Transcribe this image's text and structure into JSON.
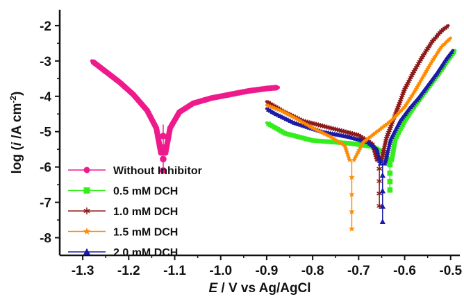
{
  "chart_data": {
    "type": "line",
    "xlabel": "E / V vs Ag/AgCl",
    "xlabel_italic": "E",
    "xlabel_rest": " / V vs Ag/AgCl",
    "ylabel": "log (i /A cm-2)",
    "ylabel_parts": {
      "pre": "log (",
      "italic": "i",
      "mid": " /A cm",
      "sup": "-2",
      "post": ")"
    },
    "xlim": [
      -1.35,
      -0.48
    ],
    "ylim": [
      -8.5,
      -1.55
    ],
    "xticks": [
      -1.3,
      -1.2,
      -1.1,
      -1.0,
      -0.9,
      -0.8,
      -0.7,
      -0.6,
      -0.5
    ],
    "xtick_labels": [
      "-1.3",
      "-1.2",
      "-1.1",
      "-1.0",
      "-0.9",
      "-0.8",
      "-0.7",
      "-0.6",
      "-0.5"
    ],
    "yticks": [
      -2,
      -3,
      -4,
      -5,
      -6,
      -7,
      -8
    ],
    "ytick_labels": [
      "-2",
      "-3",
      "-4",
      "-5",
      "-6",
      "-7",
      "-8"
    ],
    "legend_position": "bottom-left",
    "series": [
      {
        "name": "Without Inhibitor",
        "color": "#ee1a8c",
        "marker": "circle",
        "ecorr": -1.125,
        "anodic": [
          [
            -1.12,
            -5.6
          ],
          [
            -1.11,
            -4.9
          ],
          [
            -1.09,
            -4.45
          ],
          [
            -1.06,
            -4.2
          ],
          [
            -1.02,
            -4.05
          ],
          [
            -0.98,
            -3.95
          ],
          [
            -0.94,
            -3.85
          ],
          [
            -0.9,
            -3.78
          ],
          [
            -0.875,
            -3.75
          ]
        ],
        "cathodic": [
          [
            -1.13,
            -5.6
          ],
          [
            -1.14,
            -4.9
          ],
          [
            -1.16,
            -4.4
          ],
          [
            -1.19,
            -3.95
          ],
          [
            -1.22,
            -3.6
          ],
          [
            -1.25,
            -3.3
          ],
          [
            -1.28,
            -3.0
          ]
        ],
        "spike": [
          [
            -1.125,
            -4.8
          ],
          [
            -1.125,
            -6.1
          ]
        ]
      },
      {
        "name": "0.5 mM DCH",
        "color": "#33ee1c",
        "marker": "square",
        "ecorr": -0.632,
        "anodic": [
          [
            -0.628,
            -5.8
          ],
          [
            -0.62,
            -5.2
          ],
          [
            -0.6,
            -4.7
          ],
          [
            -0.58,
            -4.3
          ],
          [
            -0.56,
            -3.95
          ],
          [
            -0.54,
            -3.6
          ],
          [
            -0.52,
            -3.25
          ],
          [
            -0.505,
            -2.95
          ],
          [
            -0.49,
            -2.7
          ]
        ],
        "cathodic": [
          [
            -0.636,
            -5.8
          ],
          [
            -0.645,
            -5.6
          ],
          [
            -0.67,
            -5.42
          ],
          [
            -0.72,
            -5.33
          ],
          [
            -0.8,
            -5.25
          ],
          [
            -0.86,
            -5.05
          ],
          [
            -0.9,
            -4.75
          ]
        ],
        "spike": [
          [
            -0.632,
            -5.7
          ],
          [
            -0.632,
            -6.65
          ]
        ]
      },
      {
        "name": "1.0 mM DCH",
        "color": "#8b1a1a",
        "marker": "star6",
        "ecorr": -0.655,
        "anodic": [
          [
            -0.65,
            -5.8
          ],
          [
            -0.64,
            -5.2
          ],
          [
            -0.62,
            -4.5
          ],
          [
            -0.6,
            -3.8
          ],
          [
            -0.58,
            -3.3
          ],
          [
            -0.56,
            -2.85
          ],
          [
            -0.54,
            -2.45
          ],
          [
            -0.52,
            -2.15
          ],
          [
            -0.505,
            -2.0
          ]
        ],
        "cathodic": [
          [
            -0.66,
            -5.8
          ],
          [
            -0.67,
            -5.35
          ],
          [
            -0.7,
            -5.1
          ],
          [
            -0.76,
            -4.9
          ],
          [
            -0.82,
            -4.7
          ],
          [
            -0.86,
            -4.45
          ],
          [
            -0.9,
            -4.15
          ]
        ],
        "spike": [
          [
            -0.655,
            -5.7
          ],
          [
            -0.655,
            -7.1
          ]
        ]
      },
      {
        "name": "1.5 mM DCH",
        "color": "#ff8a00",
        "marker": "star5",
        "ecorr": -0.715,
        "anodic": [
          [
            -0.71,
            -5.8
          ],
          [
            -0.69,
            -5.3
          ],
          [
            -0.66,
            -5.0
          ],
          [
            -0.63,
            -4.7
          ],
          [
            -0.6,
            -4.3
          ],
          [
            -0.58,
            -3.9
          ],
          [
            -0.56,
            -3.45
          ],
          [
            -0.54,
            -3.0
          ],
          [
            -0.52,
            -2.6
          ],
          [
            -0.5,
            -2.35
          ]
        ],
        "cathodic": [
          [
            -0.72,
            -5.8
          ],
          [
            -0.73,
            -5.4
          ],
          [
            -0.76,
            -5.15
          ],
          [
            -0.8,
            -4.9
          ],
          [
            -0.84,
            -4.6
          ],
          [
            -0.87,
            -4.4
          ],
          [
            -0.9,
            -4.25
          ]
        ],
        "spike": [
          [
            -0.715,
            -5.8
          ],
          [
            -0.715,
            -7.75
          ]
        ]
      },
      {
        "name": "2.0 mM DCH",
        "color": "#1a1aa6",
        "marker": "triangle",
        "ecorr": -0.648,
        "anodic": [
          [
            -0.643,
            -5.9
          ],
          [
            -0.63,
            -5.2
          ],
          [
            -0.61,
            -4.7
          ],
          [
            -0.59,
            -4.35
          ],
          [
            -0.57,
            -4.05
          ],
          [
            -0.55,
            -3.7
          ],
          [
            -0.53,
            -3.35
          ],
          [
            -0.51,
            -2.95
          ],
          [
            -0.495,
            -2.7
          ]
        ],
        "cathodic": [
          [
            -0.653,
            -5.9
          ],
          [
            -0.66,
            -5.5
          ],
          [
            -0.68,
            -5.3
          ],
          [
            -0.72,
            -5.15
          ],
          [
            -0.78,
            -5.0
          ],
          [
            -0.84,
            -4.75
          ],
          [
            -0.88,
            -4.5
          ],
          [
            -0.9,
            -4.35
          ]
        ],
        "spike": [
          [
            -0.648,
            -5.8
          ],
          [
            -0.648,
            -7.55
          ]
        ]
      }
    ]
  }
}
